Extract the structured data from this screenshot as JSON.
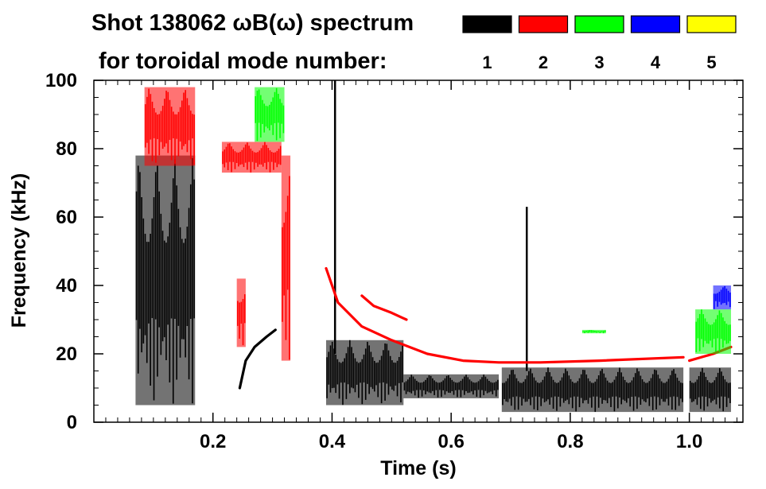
{
  "chart_data": {
    "type": "heatmap",
    "title_line1": "Shot 138062 ωB(ω) spectrum",
    "title_line2": "for toroidal mode number:",
    "xlabel": "Time (s)",
    "ylabel": "Frequency (kHz)",
    "xlim": [
      0.0,
      1.09
    ],
    "ylim": [
      0,
      100
    ],
    "x_ticks": [
      0.2,
      0.4,
      0.6,
      0.8,
      1.0
    ],
    "x_tick_labels": [
      "0.2",
      "0.4",
      "0.6",
      "0.8",
      "1.0"
    ],
    "y_ticks": [
      0,
      20,
      40,
      60,
      80,
      100
    ],
    "y_tick_labels": [
      "0",
      "20",
      "40",
      "60",
      "80",
      "100"
    ],
    "legend_position": "top-right",
    "modes": [
      {
        "label": "1",
        "color": "#000000"
      },
      {
        "label": "2",
        "color": "#ff0000"
      },
      {
        "label": "3",
        "color": "#00ff00"
      },
      {
        "label": "4",
        "color": "#0000ff"
      },
      {
        "label": "5",
        "color": "#ffff00"
      }
    ],
    "features": [
      {
        "mode": "1",
        "kind": "band",
        "t": [
          0.07,
          0.17
        ],
        "f": [
          5,
          78
        ]
      },
      {
        "mode": "1",
        "kind": "band",
        "t": [
          0.39,
          0.52
        ],
        "f": [
          5,
          24
        ]
      },
      {
        "mode": "1",
        "kind": "band",
        "t": [
          0.52,
          0.68
        ],
        "f": [
          7,
          14
        ]
      },
      {
        "mode": "1",
        "kind": "band",
        "t": [
          0.685,
          0.99
        ],
        "f": [
          3,
          16
        ]
      },
      {
        "mode": "1",
        "kind": "band",
        "t": [
          1.0,
          1.07
        ],
        "f": [
          3,
          16
        ]
      },
      {
        "mode": "1",
        "kind": "spike",
        "t": 0.727,
        "f": [
          15,
          63
        ]
      },
      {
        "mode": "1",
        "kind": "spike",
        "t": 0.405,
        "f": [
          20,
          100
        ]
      },
      {
        "mode": "1",
        "kind": "curve",
        "t": [
          0.245,
          0.255,
          0.27,
          0.29,
          0.305
        ],
        "f": [
          10,
          18,
          22,
          25,
          27
        ]
      },
      {
        "mode": "2",
        "kind": "band",
        "t": [
          0.085,
          0.17
        ],
        "f": [
          75,
          98
        ]
      },
      {
        "mode": "2",
        "kind": "band",
        "t": [
          0.215,
          0.315
        ],
        "f": [
          73,
          82
        ]
      },
      {
        "mode": "2",
        "kind": "band",
        "t": [
          0.315,
          0.33
        ],
        "f": [
          18,
          78
        ]
      },
      {
        "mode": "2",
        "kind": "band",
        "t": [
          0.24,
          0.255
        ],
        "f": [
          22,
          42
        ]
      },
      {
        "mode": "2",
        "kind": "curve",
        "t": [
          0.39,
          0.41,
          0.45,
          0.5,
          0.56,
          0.62,
          0.68,
          0.75,
          0.85,
          0.99
        ],
        "f": [
          45,
          35,
          28,
          24,
          20,
          18,
          17.5,
          17.5,
          18,
          19
        ]
      },
      {
        "mode": "2",
        "kind": "curve",
        "t": [
          0.45,
          0.47,
          0.5,
          0.525
        ],
        "f": [
          37,
          34,
          32,
          30
        ]
      },
      {
        "mode": "2",
        "kind": "curve",
        "t": [
          1.0,
          1.04,
          1.07
        ],
        "f": [
          18,
          20,
          22
        ]
      },
      {
        "mode": "3",
        "kind": "band",
        "t": [
          0.27,
          0.32
        ],
        "f": [
          82,
          98
        ]
      },
      {
        "mode": "3",
        "kind": "band",
        "t": [
          1.01,
          1.07
        ],
        "f": [
          20,
          33
        ]
      },
      {
        "mode": "3",
        "kind": "band",
        "t": [
          0.82,
          0.86
        ],
        "f": [
          26,
          27
        ]
      },
      {
        "mode": "4",
        "kind": "band",
        "t": [
          1.04,
          1.07
        ],
        "f": [
          33,
          40
        ]
      }
    ]
  }
}
